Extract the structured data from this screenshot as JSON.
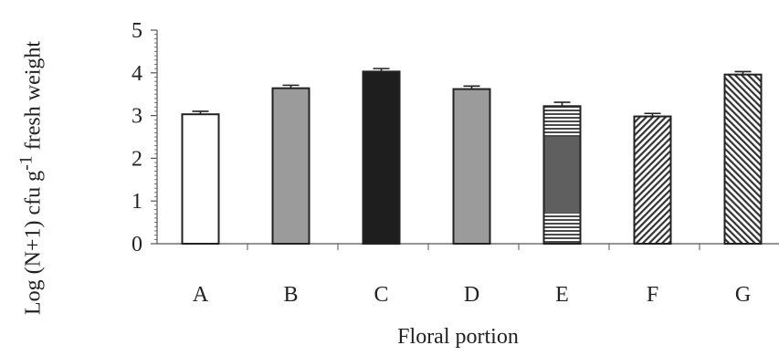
{
  "chart_data": {
    "type": "bar",
    "categories": [
      "A",
      "B",
      "C",
      "D",
      "E",
      "F",
      "G"
    ],
    "values": [
      3.03,
      3.64,
      4.03,
      3.62,
      3.22,
      2.98,
      3.96
    ],
    "errors": [
      0.07,
      0.07,
      0.07,
      0.07,
      0.09,
      0.07,
      0.07
    ],
    "fills": [
      "white",
      "gray",
      "black",
      "gray",
      "horizontal-stripes",
      "diagonal-hatch-left",
      "diagonal-hatch-right"
    ],
    "xlabel": "Floral portion",
    "ylabel_prefix": "Log (N+1) cfu g",
    "ylabel_superscript": "-1",
    "ylabel_suffix": " fresh weight",
    "ylim": [
      0,
      5
    ],
    "yticks": [
      "0",
      "1",
      "2",
      "3",
      "4",
      "5"
    ],
    "colors": {
      "gray": "#9b9b9b",
      "black": "#1e1e1e",
      "dark": "#5f5f5f",
      "axis": "#555555"
    }
  }
}
